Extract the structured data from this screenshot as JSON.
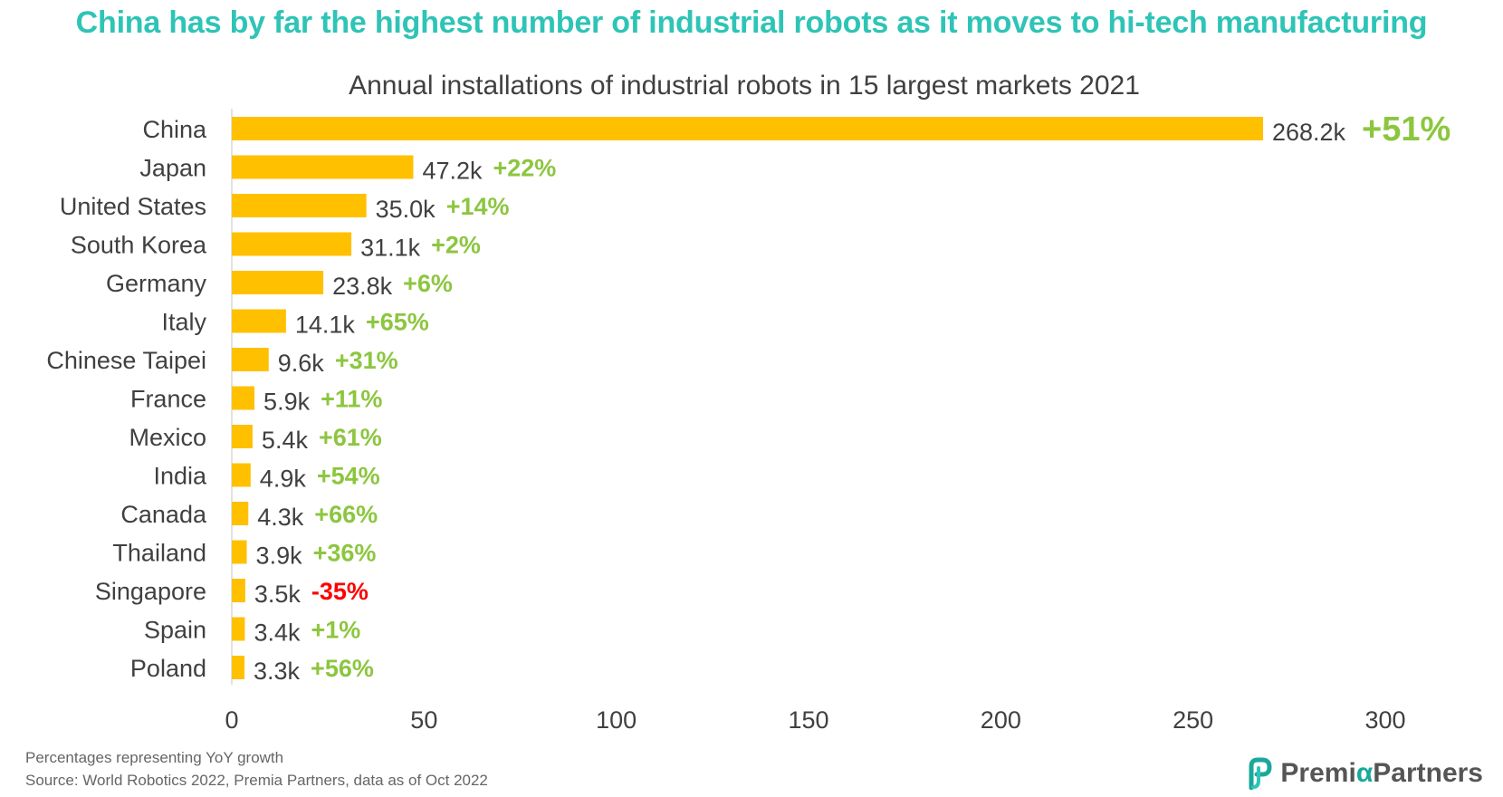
{
  "headline": "China has by far the highest number of industrial robots as it moves to hi-tech manufacturing",
  "chart_data": {
    "type": "bar",
    "orientation": "horizontal",
    "title": "Annual installations of industrial robots in 15 largest markets 2021",
    "categories": [
      "China",
      "Japan",
      "United States",
      "South Korea",
      "Germany",
      "Italy",
      "Chinese Taipei",
      "France",
      "Mexico",
      "India",
      "Canada",
      "Thailand",
      "Singapore",
      "Spain",
      "Poland"
    ],
    "values": [
      268.2,
      47.2,
      35.0,
      31.1,
      23.8,
      14.1,
      9.6,
      5.9,
      5.4,
      4.9,
      4.3,
      3.9,
      3.5,
      3.4,
      3.3
    ],
    "value_labels": [
      "268.2k",
      "47.2k",
      "35.0k",
      "31.1k",
      "23.8k",
      "14.1k",
      "9.6k",
      "5.9k",
      "5.4k",
      "4.9k",
      "4.3k",
      "3.9k",
      "3.5k",
      "3.4k",
      "3.3k"
    ],
    "growth_labels": [
      "+51%",
      "+22%",
      "+14%",
      "+2%",
      "+6%",
      "+65%",
      "+31%",
      "+11%",
      "+61%",
      "+54%",
      "+66%",
      "+36%",
      "-35%",
      "+1%",
      "+56%"
    ],
    "xlim": [
      0,
      300
    ],
    "xticks": [
      0,
      50,
      100,
      150,
      200,
      250,
      300
    ],
    "grid": false,
    "colors": {
      "bar": "#ffc000",
      "growth_positive": "#8cc63f",
      "growth_negative": "#ff0000",
      "label": "#404040"
    }
  },
  "footer": {
    "note": "Percentages representing YoY growth",
    "source": "Source: World Robotics 2022, Premia Partners, data as of Oct 2022"
  },
  "brand": {
    "name_part1": "Premi",
    "name_alpha": "α",
    "name_part2": " Partners"
  }
}
